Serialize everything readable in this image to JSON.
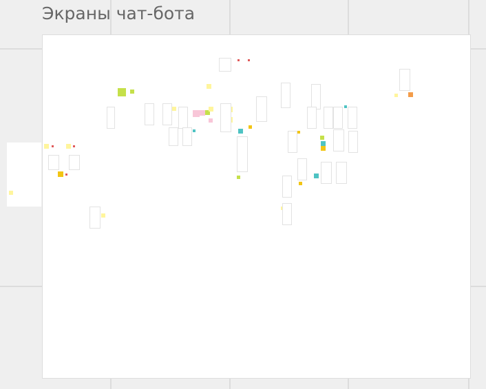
{
  "board": {
    "frame_title": "Экраны чат-бота"
  },
  "colors": {
    "yellow": "#fff59d",
    "lime": "#c5e04a",
    "teal": "#4ec3c3",
    "gold": "#f2c515",
    "pink": "#f8c6d8",
    "orange": "#f39c4a",
    "red": "#e05a5a"
  }
}
